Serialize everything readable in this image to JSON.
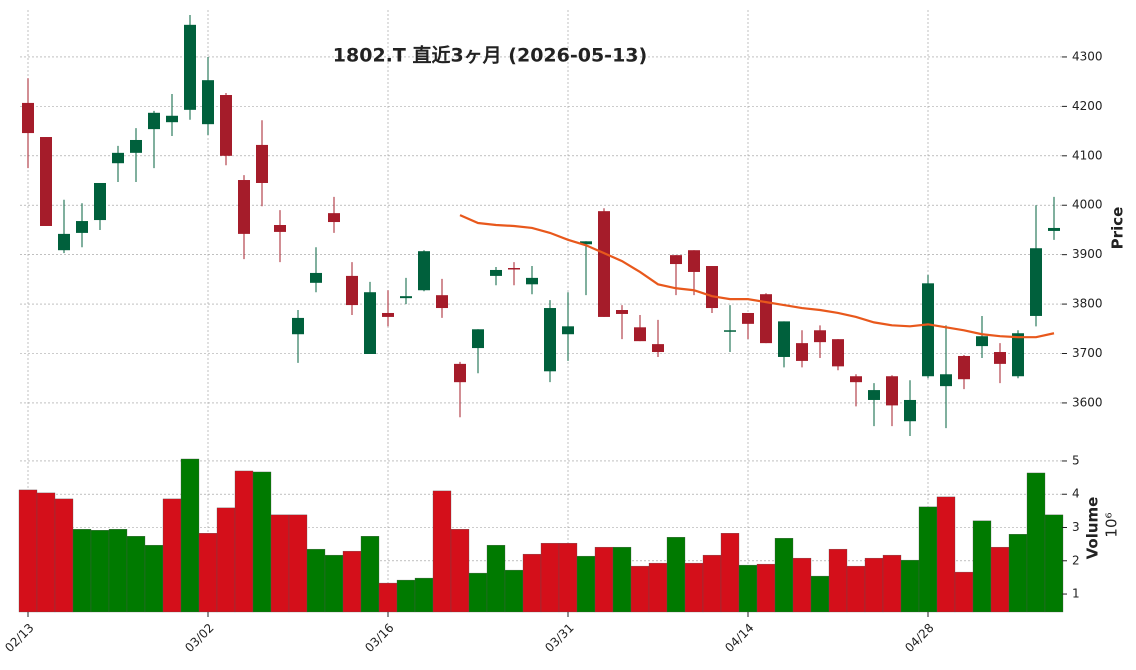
{
  "chart_data": {
    "type": "candlestick",
    "title": "1802.T  直近3ヶ月  (2026-05-13)",
    "ylabel": "Price",
    "volume_label": "Volume",
    "volume_offset_label": "10⁶",
    "categories": [
      "02/13",
      null,
      null,
      null,
      null,
      null,
      null,
      null,
      null,
      null,
      "03/02",
      null,
      null,
      null,
      null,
      null,
      null,
      null,
      null,
      null,
      "03/16",
      null,
      null,
      null,
      null,
      null,
      null,
      null,
      null,
      null,
      "03/31",
      null,
      null,
      null,
      null,
      null,
      null,
      null,
      null,
      null,
      "04/14",
      null,
      null,
      null,
      null,
      null,
      null,
      null,
      null,
      null,
      "04/28",
      null,
      null,
      null,
      null,
      null,
      null,
      null
    ],
    "open": [
      4207,
      4138,
      3909,
      3944,
      3970,
      4085,
      4106,
      4154,
      4168,
      4193,
      4164,
      4223,
      4051,
      4122,
      3960,
      3739,
      3843,
      3984,
      3857,
      3699,
      3782,
      3812,
      3828,
      3818,
      3679,
      3711,
      3857,
      3873,
      3840,
      3664,
      3739,
      3921,
      3988,
      3788,
      3753,
      3719,
      3899,
      3909,
      3877,
      3745,
      3782,
      3820,
      3693,
      3721,
      3747,
      3729,
      3654,
      3606,
      3654,
      3563,
      3654,
      3634,
      3695,
      3715,
      3703,
      3654,
      3776,
      3948
    ],
    "high": [
      4257,
      4138,
      4011,
      4004,
      4045,
      4120,
      4156,
      4191,
      4225,
      4385,
      4300,
      4227,
      4061,
      4172,
      3990,
      3788,
      3915,
      4017,
      3885,
      3845,
      3828,
      3853,
      3909,
      3851,
      3683,
      3749,
      3875,
      3885,
      3877,
      3808,
      3824,
      3927,
      3994,
      3798,
      3778,
      3768,
      3899,
      3909,
      3877,
      3798,
      3782,
      3822,
      3765,
      3747,
      3757,
      3729,
      3658,
      3640,
      3656,
      3646,
      3859,
      3757,
      3697,
      3776,
      3721,
      3747,
      4000,
      4017
    ],
    "low": [
      4075,
      3958,
      3903,
      3915,
      3950,
      4047,
      4047,
      4075,
      4140,
      4173,
      4142,
      4081,
      3891,
      3998,
      3885,
      3681,
      3824,
      3944,
      3778,
      3699,
      3755,
      3800,
      3826,
      3772,
      3571,
      3660,
      3838,
      3838,
      3820,
      3642,
      3685,
      3818,
      3774,
      3729,
      3725,
      3693,
      3818,
      3818,
      3782,
      3703,
      3729,
      3721,
      3672,
      3672,
      3691,
      3666,
      3593,
      3553,
      3553,
      3533,
      3650,
      3549,
      3628,
      3691,
      3640,
      3650,
      3755,
      3930
    ],
    "close": [
      4146,
      3958,
      3942,
      3968,
      4045,
      4106,
      4132,
      4187,
      4181,
      4365,
      4253,
      4100,
      3942,
      4045,
      3946,
      3772,
      3863,
      3966,
      3798,
      3824,
      3774,
      3816,
      3907,
      3792,
      3642,
      3749,
      3869,
      3871,
      3853,
      3792,
      3755,
      3927,
      3774,
      3780,
      3725,
      3703,
      3881,
      3865,
      3792,
      3747,
      3760,
      3721,
      3765,
      3685,
      3723,
      3674,
      3642,
      3626,
      3595,
      3606,
      3842,
      3658,
      3648,
      3735,
      3679,
      3741,
      3913,
      3954
    ],
    "up_color": "#00603c",
    "down_color": "#a51c2a",
    "ma_values": [
      null,
      null,
      null,
      null,
      null,
      null,
      null,
      null,
      null,
      null,
      null,
      null,
      null,
      null,
      null,
      null,
      null,
      null,
      null,
      null,
      null,
      null,
      null,
      null,
      3980,
      3964,
      3960,
      3958,
      3954,
      3944,
      3930,
      3919,
      3903,
      3887,
      3865,
      3840,
      3832,
      3828,
      3816,
      3810,
      3810,
      3804,
      3798,
      3792,
      3788,
      3782,
      3774,
      3763,
      3757,
      3755,
      3759,
      3753,
      3747,
      3739,
      3735,
      3733,
      3733,
      3741
    ],
    "ma_color": "#e8581c",
    "volume": [
      4.13,
      4.04,
      3.86,
      2.95,
      2.92,
      2.95,
      2.74,
      2.47,
      3.86,
      5.06,
      2.83,
      3.59,
      4.7,
      4.67,
      3.38,
      3.38,
      2.35,
      2.17,
      2.29,
      2.74,
      1.33,
      1.42,
      1.48,
      4.1,
      2.95,
      1.63,
      2.47,
      1.72,
      2.2,
      2.53,
      2.53,
      2.14,
      2.41,
      2.41,
      1.84,
      1.93,
      2.71,
      1.93,
      2.17,
      2.83,
      1.87,
      1.9,
      2.68,
      2.08,
      1.54,
      2.35,
      1.84,
      2.08,
      2.17,
      2.02,
      3.62,
      3.92,
      1.66,
      3.2,
      2.41,
      2.8,
      4.64,
      3.38
    ],
    "volume_colors": [
      "#d40f1a",
      "#d40f1a",
      "#d40f1a",
      "#007a00",
      "#007a00",
      "#007a00",
      "#007a00",
      "#007a00",
      "#d40f1a",
      "#007a00",
      "#d40f1a",
      "#d40f1a",
      "#d40f1a",
      "#007a00",
      "#d40f1a",
      "#d40f1a",
      "#007a00",
      "#007a00",
      "#d40f1a",
      "#007a00",
      "#d40f1a",
      "#007a00",
      "#007a00",
      "#d40f1a",
      "#d40f1a",
      "#007a00",
      "#007a00",
      "#007a00",
      "#d40f1a",
      "#d40f1a",
      "#d40f1a",
      "#007a00",
      "#d40f1a",
      "#007a00",
      "#d40f1a",
      "#d40f1a",
      "#007a00",
      "#d40f1a",
      "#d40f1a",
      "#d40f1a",
      "#007a00",
      "#d40f1a",
      "#007a00",
      "#d40f1a",
      "#007a00",
      "#d40f1a",
      "#d40f1a",
      "#d40f1a",
      "#d40f1a",
      "#007a00",
      "#007a00",
      "#d40f1a",
      "#d40f1a",
      "#007a00",
      "#d40f1a",
      "#007a00",
      "#007a00",
      "#007a00"
    ],
    "ylim": [
      3525,
      4395
    ],
    "yticks": [
      3600,
      3700,
      3800,
      3900,
      4000,
      4100,
      4200,
      4300
    ],
    "volume_ylim": [
      0.46,
      5.48
    ],
    "volume_yticks": [
      1,
      2,
      3,
      4,
      5
    ],
    "grid": true
  }
}
